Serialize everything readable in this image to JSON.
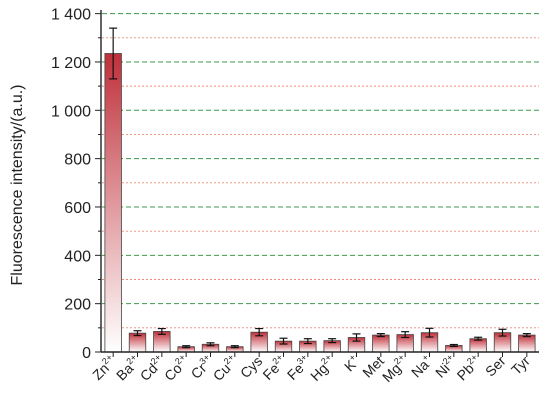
{
  "chart_data": {
    "type": "bar",
    "ylabel": "Fluorescence intensity/(a.u.)",
    "ylim": [
      0,
      1400
    ],
    "yticks": [
      0,
      200,
      400,
      600,
      800,
      1000,
      1200,
      1400
    ],
    "ytick_labels": [
      "0",
      "200",
      "400",
      "600",
      "800",
      "1 000",
      "1 200",
      "1 400"
    ],
    "grid": true,
    "categories": [
      {
        "base": "Zn",
        "sup": "2+"
      },
      {
        "base": "Ba",
        "sup": "2+"
      },
      {
        "base": "Cd",
        "sup": "2+"
      },
      {
        "base": "Co",
        "sup": "2+"
      },
      {
        "base": "Cr",
        "sup": "3+"
      },
      {
        "base": "Cu",
        "sup": "2+"
      },
      {
        "base": "Cys",
        "sup": ""
      },
      {
        "base": "Fe",
        "sup": "2+"
      },
      {
        "base": "Fe",
        "sup": "3+"
      },
      {
        "base": "Hg",
        "sup": "2+"
      },
      {
        "base": "K",
        "sup": "+"
      },
      {
        "base": "Met",
        "sup": ""
      },
      {
        "base": "Mg",
        "sup": "2+"
      },
      {
        "base": "Na",
        "sup": "+"
      },
      {
        "base": "Ni",
        "sup": "2+"
      },
      {
        "base": "Pb",
        "sup": "2+"
      },
      {
        "base": "Ser",
        "sup": ""
      },
      {
        "base": "Tyr",
        "sup": ""
      }
    ],
    "values": [
      1235,
      78,
      85,
      22,
      32,
      22,
      82,
      45,
      45,
      47,
      60,
      70,
      72,
      80,
      27,
      55,
      80,
      70
    ],
    "errors": [
      105,
      10,
      12,
      4,
      6,
      4,
      15,
      12,
      10,
      8,
      15,
      6,
      12,
      18,
      4,
      6,
      14,
      6
    ],
    "colors": {
      "bar_top": "#c0303a",
      "bar_bottom": "#ffffff",
      "bar_stroke": "#444444",
      "grid_major": "#3c9a4a",
      "grid_minor": "#e98a7a",
      "axis": "#222222"
    }
  }
}
